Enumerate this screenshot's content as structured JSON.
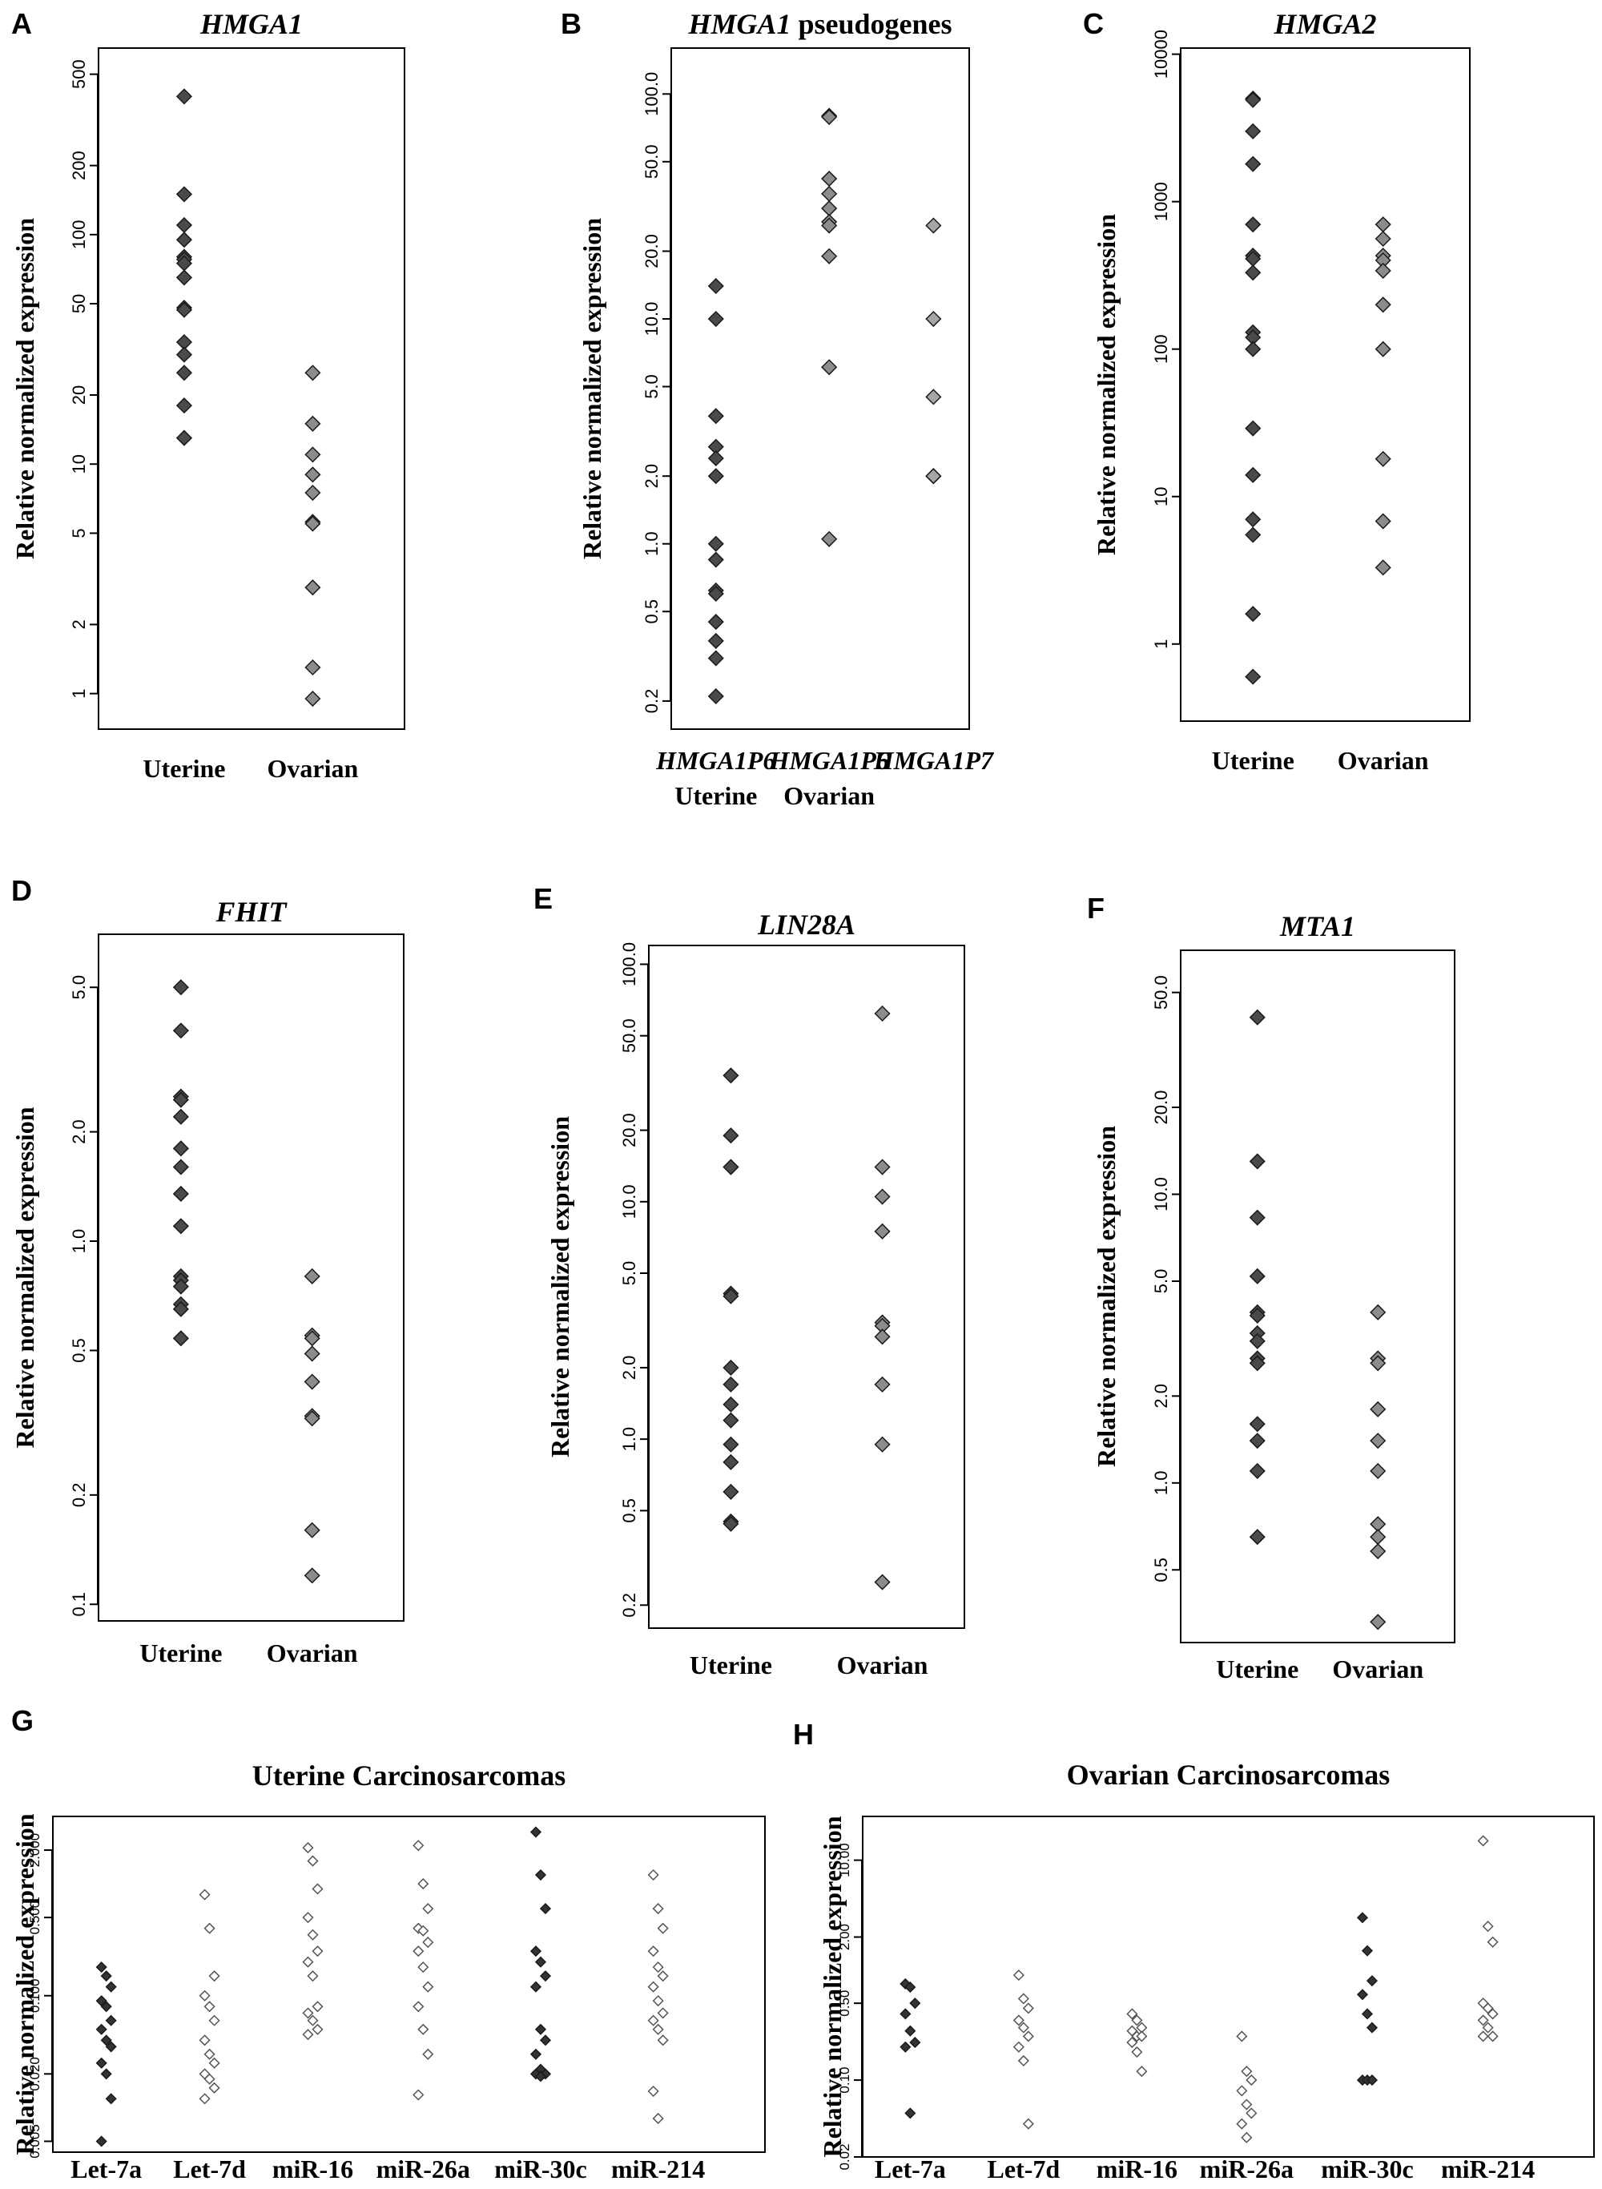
{
  "chart_data": [
    {
      "panel": "A",
      "type": "scatter",
      "title": "HMGA1",
      "title_italic": true,
      "ylabel": "Relative normalized expression",
      "yscale": "log",
      "ylim": [
        0.7,
        650
      ],
      "yticks": [
        1,
        2,
        5,
        10,
        20,
        50,
        100,
        200,
        500
      ],
      "categories": [
        {
          "label_lines": [
            "Uterine"
          ],
          "values": [
            400,
            150,
            110,
            95,
            80,
            78,
            75,
            65,
            48,
            47,
            34,
            30,
            25,
            18,
            13,
            13
          ],
          "color": "#4a4a4a"
        },
        {
          "label_lines": [
            "Ovarian"
          ],
          "values": [
            25,
            15,
            11,
            9,
            7.5,
            5.6,
            5.5,
            2.9,
            1.3,
            0.95
          ],
          "color": "#8c8c8c"
        }
      ]
    },
    {
      "panel": "B",
      "type": "scatter",
      "title_parts": [
        {
          "text": "HMGA1",
          "italic": true
        },
        {
          "text": " pseudogenes",
          "italic": false
        }
      ],
      "ylabel": "Relative normalized expression",
      "yscale": "log",
      "ylim": [
        0.15,
        160
      ],
      "yticks": [
        0.2,
        0.5,
        1.0,
        2.0,
        5.0,
        10.0,
        20.0,
        50.0,
        100.0
      ],
      "tick_decimals": 1,
      "categories": [
        {
          "label_lines": [
            "HMGA1P6",
            "Uterine"
          ],
          "label_italic": [
            true,
            false
          ],
          "values": [
            14,
            10,
            3.7,
            2.7,
            2.4,
            2.0,
            1.0,
            0.85,
            0.62,
            0.6,
            0.45,
            0.37,
            0.31,
            0.21
          ],
          "color": "#4a4a4a"
        },
        {
          "label_lines": [
            "HMGA1P6",
            "Ovarian"
          ],
          "label_italic": [
            true,
            false
          ],
          "values": [
            80,
            79,
            42,
            36,
            31,
            27,
            26,
            19,
            6.1,
            1.05
          ],
          "color": "#8c8c8c"
        },
        {
          "label_lines": [
            "HMGA1P7",
            ""
          ],
          "label_italic": [
            true,
            false
          ],
          "values": [
            26,
            10,
            4.5,
            2.0,
            2.0,
            2.0
          ],
          "color": "#a6a6a6"
        }
      ]
    },
    {
      "panel": "C",
      "type": "scatter",
      "title": "HMGA2",
      "title_italic": true,
      "ylabel": "Relative normalized expression",
      "yscale": "log",
      "ylim": [
        0.3,
        11000
      ],
      "yticks": [
        1,
        10,
        100,
        1000,
        10000
      ],
      "categories": [
        {
          "label_lines": [
            "Uterine"
          ],
          "values": [
            5000,
            4900,
            3000,
            1800,
            700,
            430,
            410,
            330,
            130,
            120,
            100,
            29,
            14,
            7,
            5.5,
            1.6,
            0.6
          ],
          "color": "#4a4a4a"
        },
        {
          "label_lines": [
            "Ovarian"
          ],
          "values": [
            700,
            560,
            430,
            400,
            340,
            200,
            100,
            18,
            6.8,
            3.3
          ],
          "color": "#8c8c8c"
        }
      ]
    },
    {
      "panel": "D",
      "type": "scatter",
      "title": "FHIT",
      "title_italic": true,
      "ylabel": "Relative normalized expression",
      "yscale": "log",
      "ylim": [
        0.09,
        7
      ],
      "yticks": [
        0.1,
        0.2,
        0.5,
        1.0,
        2.0,
        5.0
      ],
      "tick_decimals": 1,
      "categories": [
        {
          "label_lines": [
            "Uterine"
          ],
          "values": [
            5.0,
            3.8,
            2.5,
            2.45,
            2.2,
            1.8,
            1.6,
            1.35,
            1.1,
            0.8,
            0.78,
            0.75,
            0.67,
            0.65,
            0.54
          ],
          "color": "#4a4a4a"
        },
        {
          "label_lines": [
            "Ovarian"
          ],
          "values": [
            0.8,
            0.55,
            0.54,
            0.49,
            0.41,
            0.33,
            0.325,
            0.16,
            0.12
          ],
          "color": "#8c8c8c"
        }
      ]
    },
    {
      "panel": "E",
      "type": "scatter",
      "title": "LIN28A",
      "title_italic": true,
      "ylabel": "Relative normalized expression",
      "yscale": "log",
      "ylim": [
        0.16,
        120
      ],
      "yticks": [
        0.2,
        0.5,
        1.0,
        2.0,
        5.0,
        10.0,
        20.0,
        50.0,
        100.0
      ],
      "tick_decimals": 1,
      "categories": [
        {
          "label_lines": [
            "Uterine"
          ],
          "values": [
            34,
            19,
            14,
            14,
            4.1,
            4.0,
            2.0,
            1.7,
            1.4,
            1.2,
            0.95,
            0.8,
            0.6,
            0.45,
            0.44
          ],
          "color": "#4a4a4a"
        },
        {
          "label_lines": [
            "Ovarian"
          ],
          "values": [
            62,
            14,
            10.5,
            7.5,
            3.1,
            3.0,
            2.7,
            1.7,
            0.95,
            0.25
          ],
          "color": "#8c8c8c"
        }
      ]
    },
    {
      "panel": "F",
      "type": "scatter",
      "title": "MTA1",
      "title_italic": true,
      "ylabel": "Relative normalized expression",
      "yscale": "log",
      "ylim": [
        0.28,
        70
      ],
      "yticks": [
        0.5,
        1.0,
        2.0,
        5.0,
        10.0,
        20.0,
        50.0
      ],
      "tick_decimals": 1,
      "categories": [
        {
          "label_lines": [
            "Uterine"
          ],
          "values": [
            41,
            13,
            8.3,
            5.2,
            3.9,
            3.8,
            3.3,
            3.1,
            2.7,
            2.6,
            1.6,
            1.4,
            1.1,
            0.65
          ],
          "color": "#4a4a4a"
        },
        {
          "label_lines": [
            "Ovarian"
          ],
          "values": [
            3.9,
            2.7,
            2.6,
            1.8,
            1.4,
            1.1,
            0.72,
            0.65,
            0.58,
            0.33
          ],
          "color": "#8c8c8c"
        }
      ]
    },
    {
      "panel": "G",
      "type": "scatter",
      "title": "Uterine Carcinosarcomas",
      "title_italic": false,
      "ylabel": "Relative normalized expression",
      "yscale": "log",
      "ylim": [
        0.004,
        4
      ],
      "yticks": [
        0.005,
        0.02,
        0.1,
        0.5,
        2.0
      ],
      "tick_labels": [
        "0.005",
        "0.020",
        "0.100",
        "0.500",
        "2.000"
      ],
      "small_markers": true,
      "categories": [
        {
          "label_lines": [
            "Let-7a"
          ],
          "values": [
            0.18,
            0.15,
            0.12,
            0.09,
            0.08,
            0.06,
            0.05,
            0.04,
            0.035,
            0.025,
            0.02,
            0.012,
            0.005
          ],
          "color": "#333333",
          "filled": true
        },
        {
          "label_lines": [
            "Let-7d"
          ],
          "values": [
            0.8,
            0.4,
            0.15,
            0.1,
            0.08,
            0.06,
            0.04,
            0.03,
            0.025,
            0.02,
            0.018,
            0.015,
            0.012
          ],
          "color": "#555555",
          "filled": false
        },
        {
          "label_lines": [
            "miR-16"
          ],
          "values": [
            2.1,
            1.6,
            0.9,
            0.5,
            0.35,
            0.25,
            0.2,
            0.15,
            0.08,
            0.07,
            0.06,
            0.05,
            0.045
          ],
          "color": "#555555",
          "filled": false
        },
        {
          "label_lines": [
            "miR-26a"
          ],
          "values": [
            2.2,
            1.0,
            0.6,
            0.4,
            0.38,
            0.3,
            0.25,
            0.18,
            0.12,
            0.08,
            0.05,
            0.03,
            0.013
          ],
          "color": "#555555",
          "filled": false
        },
        {
          "label_lines": [
            "miR-30c"
          ],
          "values": [
            2.9,
            1.2,
            0.6,
            0.25,
            0.2,
            0.15,
            0.12,
            0.05,
            0.04,
            0.03,
            0.022,
            0.02,
            0.02,
            0.019
          ],
          "color": "#333333",
          "filled": true
        },
        {
          "label_lines": [
            "miR-214"
          ],
          "values": [
            1.2,
            0.6,
            0.4,
            0.25,
            0.18,
            0.15,
            0.12,
            0.09,
            0.07,
            0.06,
            0.05,
            0.04,
            0.014,
            0.008
          ],
          "color": "#555555",
          "filled": false
        }
      ]
    },
    {
      "panel": "H",
      "type": "scatter",
      "title": "Ovarian Carcinosarcomas",
      "title_italic": false,
      "ylabel": "Relative normalized expression",
      "yscale": "log",
      "ylim": [
        0.02,
        25
      ],
      "yticks": [
        0.02,
        0.1,
        0.5,
        2.0,
        10.0
      ],
      "tick_labels": [
        "0.02",
        "0.10",
        "0.50",
        "2.00",
        "10.00"
      ],
      "small_markers": true,
      "categories": [
        {
          "label_lines": [
            "Let-7a"
          ],
          "values": [
            0.75,
            0.7,
            0.5,
            0.4,
            0.28,
            0.22,
            0.2,
            0.05
          ],
          "color": "#333333",
          "filled": true
        },
        {
          "label_lines": [
            "Let-7d"
          ],
          "values": [
            0.9,
            0.55,
            0.45,
            0.35,
            0.3,
            0.25,
            0.2,
            0.15,
            0.04
          ],
          "color": "#555555",
          "filled": false
        },
        {
          "label_lines": [
            "miR-16"
          ],
          "values": [
            0.4,
            0.35,
            0.3,
            0.28,
            0.25,
            0.25,
            0.22,
            0.18,
            0.12
          ],
          "color": "#555555",
          "filled": false
        },
        {
          "label_lines": [
            "miR-26a"
          ],
          "values": [
            0.25,
            0.12,
            0.1,
            0.08,
            0.06,
            0.05,
            0.04,
            0.03
          ],
          "color": "#555555",
          "filled": false
        },
        {
          "label_lines": [
            "miR-30c"
          ],
          "values": [
            3.0,
            1.5,
            0.8,
            0.6,
            0.4,
            0.3,
            0.1,
            0.1,
            0.1
          ],
          "color": "#333333",
          "filled": true
        },
        {
          "label_lines": [
            "miR-214"
          ],
          "values": [
            15,
            2.5,
            1.8,
            0.5,
            0.45,
            0.4,
            0.35,
            0.3,
            0.25,
            0.25
          ],
          "color": "#555555",
          "filled": false
        }
      ]
    }
  ]
}
